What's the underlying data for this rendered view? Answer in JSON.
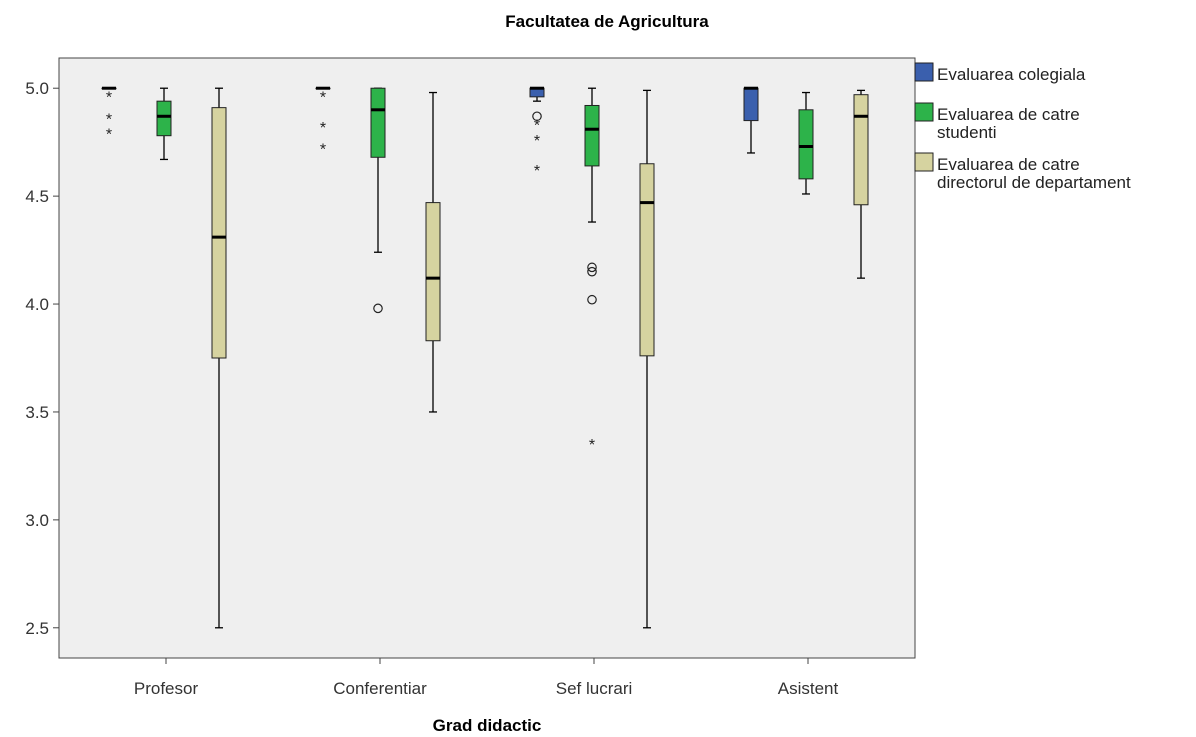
{
  "chart_data": {
    "type": "boxplot",
    "title": "Facultatea de Agricultura",
    "xlabel": "Grad didactic",
    "ylabel": "",
    "ylim": [
      2.36,
      5.14
    ],
    "yticks": [
      "2.5",
      "3.0",
      "3.5",
      "4.0",
      "4.5",
      "5.0"
    ],
    "categories": [
      "Profesor",
      "Conferentiar",
      "Sef lucrari",
      "Asistent"
    ],
    "legend_position": "right-top",
    "grid": false,
    "series": [
      {
        "name": "Evaluarea colegiala",
        "color": "#3a5fad",
        "boxes": [
          {
            "min": 5.0,
            "q1": 5.0,
            "median": 5.0,
            "q3": 5.0,
            "max": 5.0,
            "outliers": [],
            "extremes": [
              4.97,
              4.87,
              4.8
            ]
          },
          {
            "min": 5.0,
            "q1": 5.0,
            "median": 5.0,
            "q3": 5.0,
            "max": 5.0,
            "outliers": [],
            "extremes": [
              4.97,
              4.83,
              4.73
            ]
          },
          {
            "min": 4.94,
            "q1": 4.96,
            "median": 5.0,
            "q3": 5.0,
            "max": 5.0,
            "outliers": [
              4.87
            ],
            "extremes": [
              4.84,
              4.77,
              4.63
            ]
          },
          {
            "min": 4.7,
            "q1": 4.85,
            "median": 5.0,
            "q3": 5.0,
            "max": 5.0,
            "outliers": [],
            "extremes": []
          }
        ]
      },
      {
        "name": "Evaluarea de catre studenti",
        "color": "#2db34a",
        "boxes": [
          {
            "min": 4.67,
            "q1": 4.78,
            "median": 4.87,
            "q3": 4.94,
            "max": 5.0,
            "outliers": [],
            "extremes": []
          },
          {
            "min": 4.24,
            "q1": 4.68,
            "median": 4.9,
            "q3": 5.0,
            "max": 5.0,
            "outliers": [
              3.98
            ],
            "extremes": []
          },
          {
            "min": 4.38,
            "q1": 4.64,
            "median": 4.81,
            "q3": 4.92,
            "max": 5.0,
            "outliers": [
              4.17,
              4.15,
              4.02
            ],
            "extremes": [
              3.36
            ]
          },
          {
            "min": 4.51,
            "q1": 4.58,
            "median": 4.73,
            "q3": 4.9,
            "max": 4.98,
            "outliers": [],
            "extremes": []
          }
        ]
      },
      {
        "name": "Evaluarea de catre directorul de departament",
        "color": "#d6d3a0",
        "boxes": [
          {
            "min": 2.5,
            "q1": 3.75,
            "median": 4.31,
            "q3": 4.91,
            "max": 5.0,
            "outliers": [],
            "extremes": []
          },
          {
            "min": 3.5,
            "q1": 3.83,
            "median": 4.12,
            "q3": 4.47,
            "max": 4.98,
            "outliers": [],
            "extremes": []
          },
          {
            "min": 2.5,
            "q1": 3.76,
            "median": 4.47,
            "q3": 4.65,
            "max": 4.99,
            "outliers": [],
            "extremes": []
          },
          {
            "min": 4.12,
            "q1": 4.46,
            "median": 4.87,
            "q3": 4.97,
            "max": 4.99,
            "outliers": [],
            "extremes": []
          }
        ]
      }
    ]
  },
  "legend": {
    "items": [
      {
        "lines": [
          "Evaluarea colegiala"
        ]
      },
      {
        "lines": [
          "Evaluarea de catre",
          "studenti"
        ]
      },
      {
        "lines": [
          "Evaluarea de catre",
          "directorul de departament"
        ]
      }
    ]
  }
}
